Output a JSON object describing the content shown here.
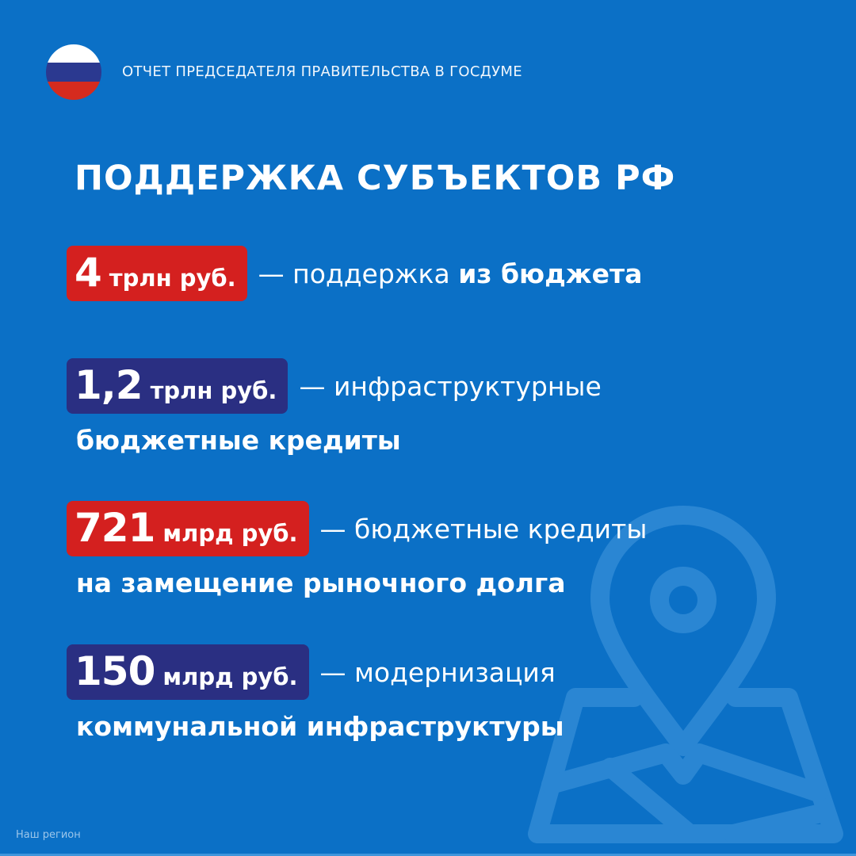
{
  "colors": {
    "background": "#0b70c6",
    "red": "#d4201f",
    "navy": "#2a2f82",
    "flag_white": "#ffffff",
    "flag_blue": "#2b3990",
    "flag_red": "#d52b1e"
  },
  "header": {
    "flag_icon": "russia-flag-icon",
    "text": "ОТЧЕТ ПРЕДСЕДАТЕЛЯ ПРАВИТЕЛЬСТВА В ГОСДУМЕ"
  },
  "title": "ПОДДЕРЖКА СУБЪЕКТОВ РФ",
  "items": [
    {
      "num": "4",
      "unit": "трлн руб.",
      "color": "red",
      "desc": "— поддержка ",
      "desc_bold": "из бюджета",
      "line2": ""
    },
    {
      "num": "1,2",
      "unit": "трлн руб.",
      "color": "navy",
      "desc": "— инфраструктурные",
      "desc_bold": "",
      "line2": "бюджетные кредиты"
    },
    {
      "num": "721",
      "unit": "млрд руб.",
      "color": "red",
      "desc": "— бюджетные кредиты",
      "desc_bold": "",
      "line2": "на замещение рыночного долга"
    },
    {
      "num": "150",
      "unit": "млрд руб.",
      "color": "navy",
      "desc": "— модернизация",
      "desc_bold": "",
      "line2": "коммунальной инфраструктуры"
    }
  ],
  "background_icon": "map-pin-icon",
  "source": "Наш регион"
}
